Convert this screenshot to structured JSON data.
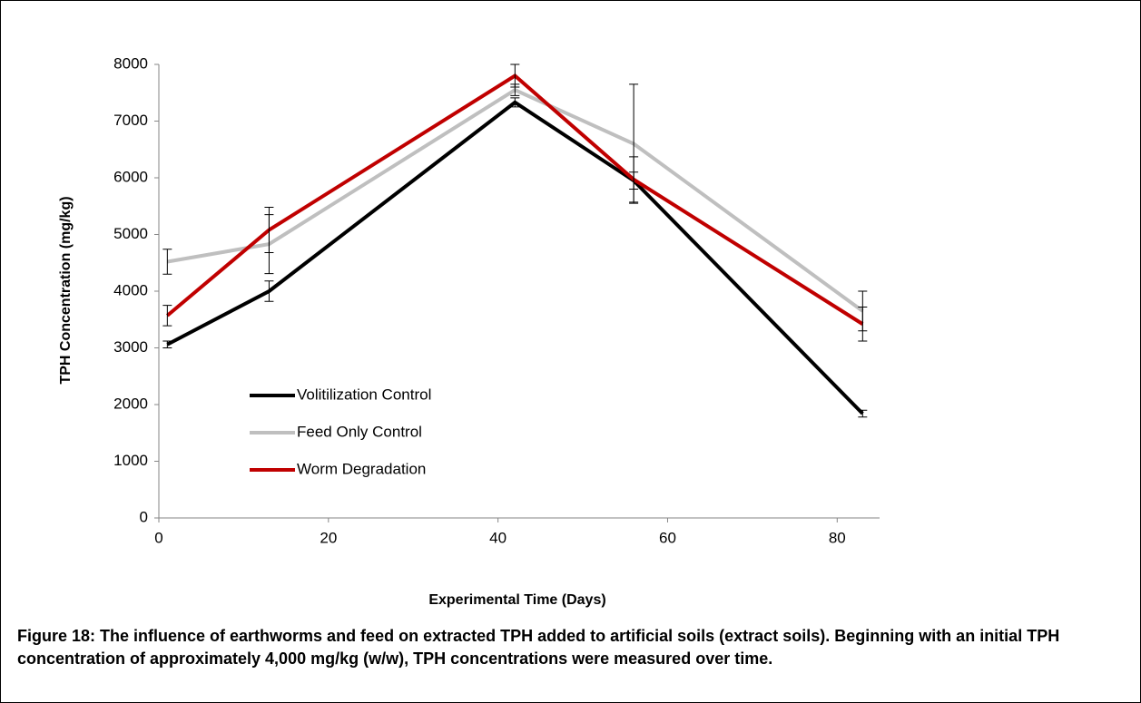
{
  "chart_data": {
    "type": "line",
    "x_label": "Experimental Time (Days)",
    "y_label": "TPH Concentration (mg/kg)",
    "x": [
      1,
      13,
      42,
      56,
      83
    ],
    "series": [
      {
        "name": "Volitilization Control",
        "color": "#000000",
        "values": [
          3060,
          4000,
          7330,
          5950,
          1840
        ],
        "errors": [
          60,
          180,
          80,
          150,
          60
        ]
      },
      {
        "name": "Feed Only Control",
        "color": "#bfbfbf",
        "values": [
          4520,
          4830,
          7550,
          6600,
          3650
        ],
        "errors": [
          220,
          520,
          100,
          1050,
          350
        ]
      },
      {
        "name": "Worm Degradation",
        "color": "#c00000",
        "values": [
          3570,
          5080,
          7800,
          5970,
          3420
        ],
        "errors": [
          180,
          400,
          200,
          400,
          300
        ]
      }
    ],
    "xlim": [
      0,
      85
    ],
    "xticks": [
      0,
      20,
      40,
      60,
      80
    ],
    "ylim": [
      0,
      8000
    ],
    "yticks": [
      0,
      1000,
      2000,
      3000,
      4000,
      5000,
      6000,
      7000,
      8000
    ],
    "legend": "left",
    "caption": "Figure 18: The influence of earthworms and feed on extracted TPH added to artificial soils (extract soils). Beginning with an initial TPH concentration of approximately 4,000 mg/kg (w/w), TPH concentrations were measured over time."
  }
}
